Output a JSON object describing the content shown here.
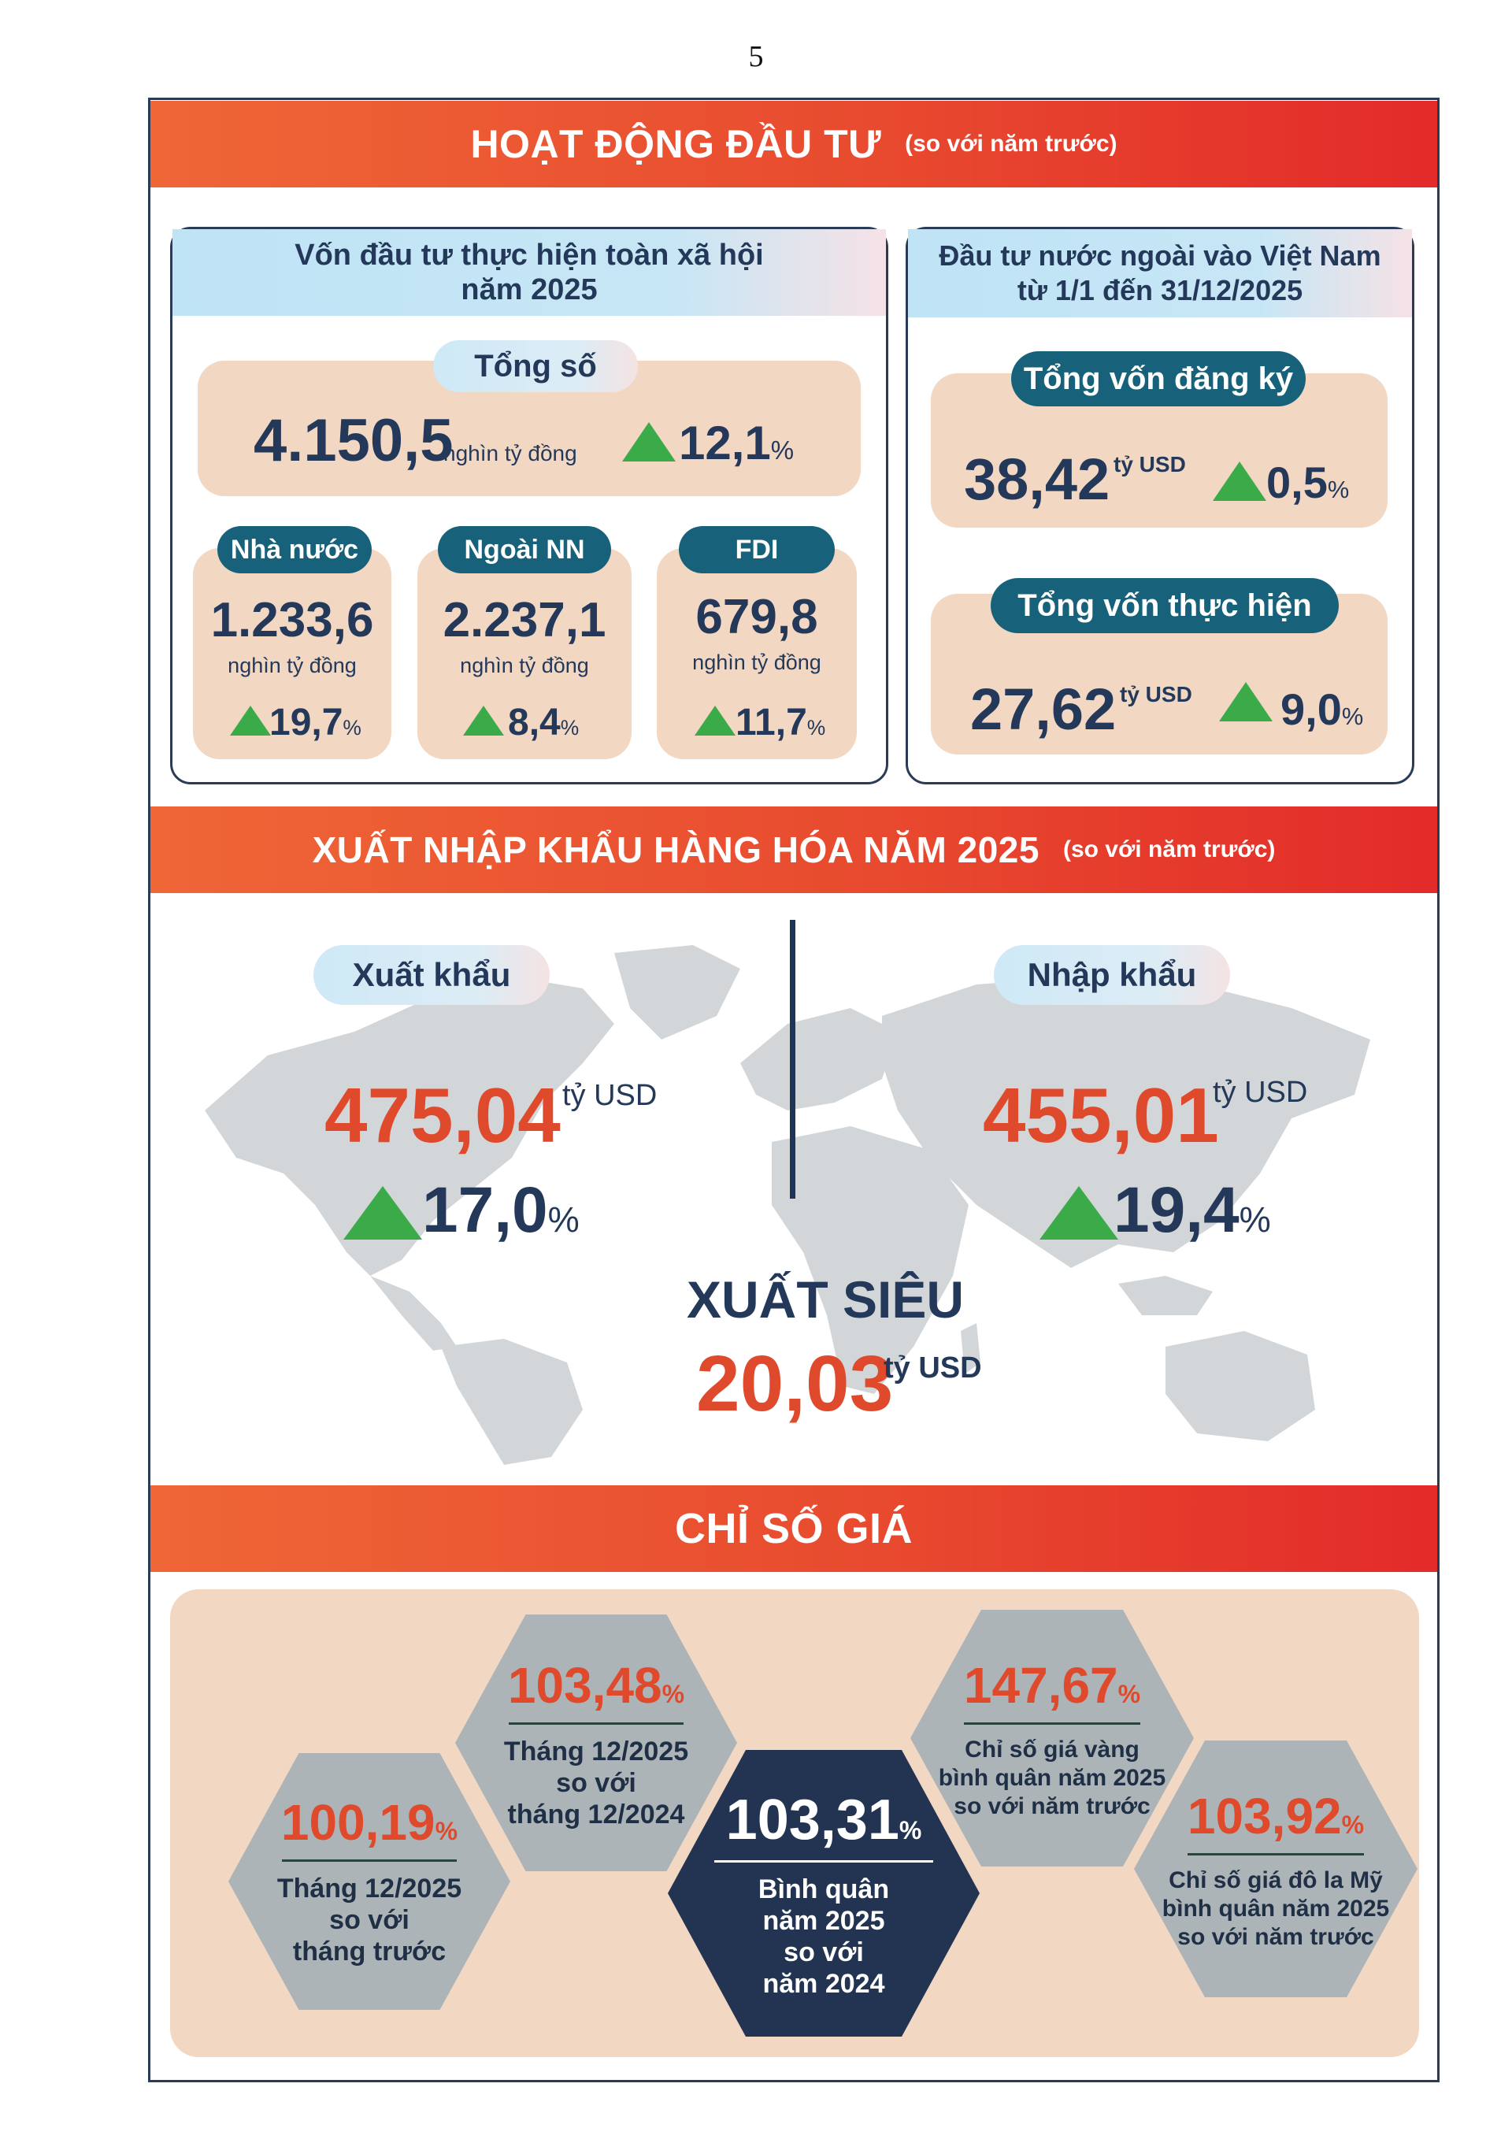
{
  "page_number": "5",
  "investment": {
    "title": "HOẠT ĐỘNG ĐẦU TƯ",
    "subtitle": "(so với năm trước)",
    "social": {
      "heading_line1": "Vốn đầu tư thực hiện toàn xã hội",
      "heading_line2": "năm 2025",
      "total_label": "Tổng số",
      "total_value": "4.150,5",
      "total_unit": "nghìn tỷ đồng",
      "total_growth": "12,1",
      "pct": "%",
      "items": [
        {
          "label": "Nhà nước",
          "value": "1.233,6",
          "unit": "nghìn tỷ đồng",
          "growth": "19,7"
        },
        {
          "label": "Ngoài NN",
          "value": "2.237,1",
          "unit": "nghìn tỷ đồng",
          "growth": "8,4"
        },
        {
          "label": "FDI",
          "value": "679,8",
          "unit": "nghìn tỷ đồng",
          "growth": "11,7"
        }
      ]
    },
    "fdi": {
      "heading_line1": "Đầu tư nước ngoài vào Việt Nam",
      "heading_line2": "từ 1/1 đến 31/12/2025",
      "registered_label": "Tổng vốn đăng ký",
      "registered_value": "38,42",
      "registered_unit": "tỷ USD",
      "registered_growth": "0,5",
      "implemented_label": "Tổng vốn thực hiện",
      "implemented_value": "27,62",
      "implemented_unit": "tỷ USD",
      "implemented_growth": "9,0"
    }
  },
  "trade": {
    "title": "XUẤT NHẬP KHẨU HÀNG HÓA  NĂM 2025",
    "subtitle": "(so với năm trước)",
    "export_label": "Xuất khẩu",
    "export_value": "475,04",
    "export_unit": "tỷ USD",
    "export_growth": "17,0",
    "import_label": "Nhập khẩu",
    "import_value": "455,01",
    "import_unit": "tỷ USD",
    "import_growth": "19,4",
    "surplus_label": "XUẤT SIÊU",
    "surplus_value": "20,03",
    "surplus_unit": "tỷ USD"
  },
  "prices": {
    "title": "CHỈ SỐ GIÁ",
    "cards": [
      {
        "value": "100,19",
        "line1": "Tháng 12/2025",
        "line2": "so với",
        "line3": "tháng trước",
        "line4": ""
      },
      {
        "value": "103,48",
        "line1": "Tháng 12/2025",
        "line2": "so với",
        "line3": "tháng 12/2024",
        "line4": ""
      },
      {
        "value": "103,31",
        "line1": "Bình quân",
        "line2": "năm 2025",
        "line3": "so với",
        "line4": "năm 2024"
      },
      {
        "value": "147,67",
        "line1": "Chỉ số giá vàng",
        "line2": "bình quân năm 2025",
        "line3": "so với năm trước",
        "line4": ""
      },
      {
        "value": "103,92",
        "line1": "Chỉ số giá đô la Mỹ",
        "line2": "bình quân năm 2025",
        "line3": "so với năm trước",
        "line4": ""
      }
    ]
  },
  "colors": {
    "banner_start": "#ef6637",
    "banner_end": "#e32b2a",
    "navy": "#24395a",
    "teal_pill": "#17627a",
    "peach": "#f2d7c3",
    "growth_green": "#3bab4a",
    "value_red": "#e04a2c"
  }
}
